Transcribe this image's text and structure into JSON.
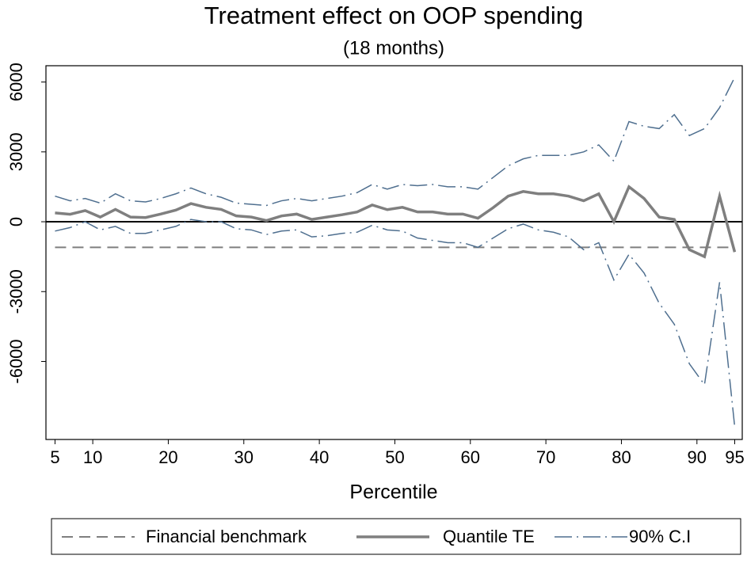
{
  "chart_data": {
    "type": "line",
    "title": "Treatment effect on OOP spending",
    "subtitle": "(18 months)",
    "x_label": "Percentile",
    "x": [
      5,
      7,
      9,
      11,
      13,
      15,
      17,
      19,
      21,
      23,
      25,
      27,
      29,
      31,
      33,
      35,
      37,
      39,
      41,
      43,
      45,
      47,
      49,
      51,
      53,
      55,
      57,
      59,
      61,
      63,
      65,
      67,
      69,
      71,
      73,
      75,
      77,
      79,
      81,
      83,
      85,
      87,
      89,
      91,
      93,
      95
    ],
    "series": [
      {
        "name": "Financial benchmark",
        "color": "#7f7f7f",
        "style": "dash",
        "values": [
          -1100,
          -1100,
          -1100,
          -1100,
          -1100,
          -1100,
          -1100,
          -1100,
          -1100,
          -1100,
          -1100,
          -1100,
          -1100,
          -1100,
          -1100,
          -1100,
          -1100,
          -1100,
          -1100,
          -1100,
          -1100,
          -1100,
          -1100,
          -1100,
          -1100,
          -1100,
          -1100,
          -1100,
          -1100,
          -1100,
          -1100,
          -1100,
          -1100,
          -1100,
          -1100,
          -1100,
          -1100,
          -1100,
          -1100,
          -1100,
          -1100,
          -1100,
          -1100,
          -1100,
          -1100,
          -1100
        ]
      },
      {
        "name": "Quantile TE",
        "color": "#7f7f7f",
        "style": "solid",
        "values": [
          380,
          320,
          480,
          200,
          530,
          200,
          180,
          330,
          500,
          780,
          620,
          530,
          250,
          200,
          50,
          250,
          330,
          100,
          200,
          300,
          420,
          720,
          520,
          620,
          420,
          420,
          330,
          330,
          150,
          600,
          1100,
          1300,
          1200,
          1200,
          1100,
          900,
          1200,
          0,
          1500,
          1000,
          200,
          100,
          -1200,
          -1500,
          1100,
          -1300
        ]
      },
      {
        "name": "90% C.I",
        "color": "#4f6f8f",
        "style": "dashdot",
        "values": [
          1100,
          900,
          1000,
          800,
          1200,
          900,
          850,
          1000,
          1200,
          1450,
          1200,
          1050,
          800,
          750,
          700,
          900,
          1000,
          900,
          1000,
          1100,
          1250,
          1600,
          1400,
          1600,
          1550,
          1600,
          1500,
          1500,
          1400,
          1900,
          2400,
          2700,
          2850,
          2850,
          2850,
          3000,
          3300,
          2600,
          4300,
          4100,
          4000,
          4600,
          3700,
          4000,
          4900,
          6200
        ]
      },
      {
        "name": "90% C.I",
        "color": "#4f6f8f",
        "style": "dashdot",
        "in_legend": false,
        "values": [
          -400,
          -250,
          0,
          -350,
          -200,
          -500,
          -500,
          -350,
          -200,
          100,
          0,
          0,
          -300,
          -350,
          -550,
          -400,
          -350,
          -650,
          -600,
          -500,
          -450,
          -150,
          -350,
          -400,
          -700,
          -800,
          -900,
          -900,
          -1100,
          -700,
          -300,
          -100,
          -350,
          -450,
          -650,
          -1200,
          -900,
          -2500,
          -1400,
          -2200,
          -3500,
          -4400,
          -6100,
          -7000,
          -2600,
          -8800
        ]
      }
    ],
    "xlim": [
      3.8,
      96
    ],
    "xticks": [
      5,
      10,
      20,
      30,
      40,
      50,
      60,
      70,
      80,
      90,
      95
    ],
    "ylim": [
      -9350,
      6700
    ],
    "yticks": [
      -6000,
      -3000,
      0,
      3000,
      6000
    ],
    "zero_line": true,
    "legend": "bottom"
  }
}
